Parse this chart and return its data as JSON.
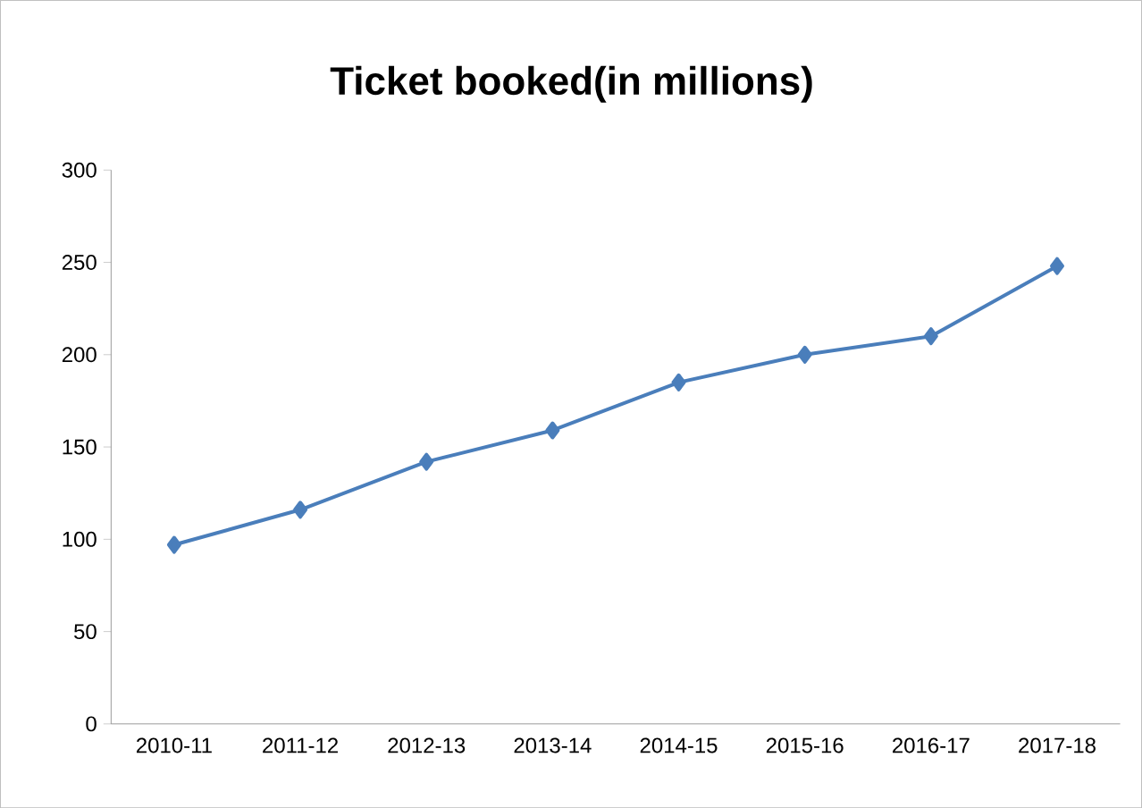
{
  "chart_data": {
    "type": "line",
    "title": "Ticket booked(in millions)",
    "categories": [
      "2010-11",
      "2011-12",
      "2012-13",
      "2013-14",
      "2014-15",
      "2015-16",
      "2016-17",
      "2017-18"
    ],
    "values": [
      97,
      116,
      142,
      159,
      185,
      200,
      210,
      248
    ],
    "color": "#4a7ebb",
    "marker": "diamond",
    "line_style": "solid",
    "ylim": [
      0,
      300
    ],
    "yticks": [
      0,
      50,
      100,
      150,
      200,
      250,
      300
    ]
  }
}
